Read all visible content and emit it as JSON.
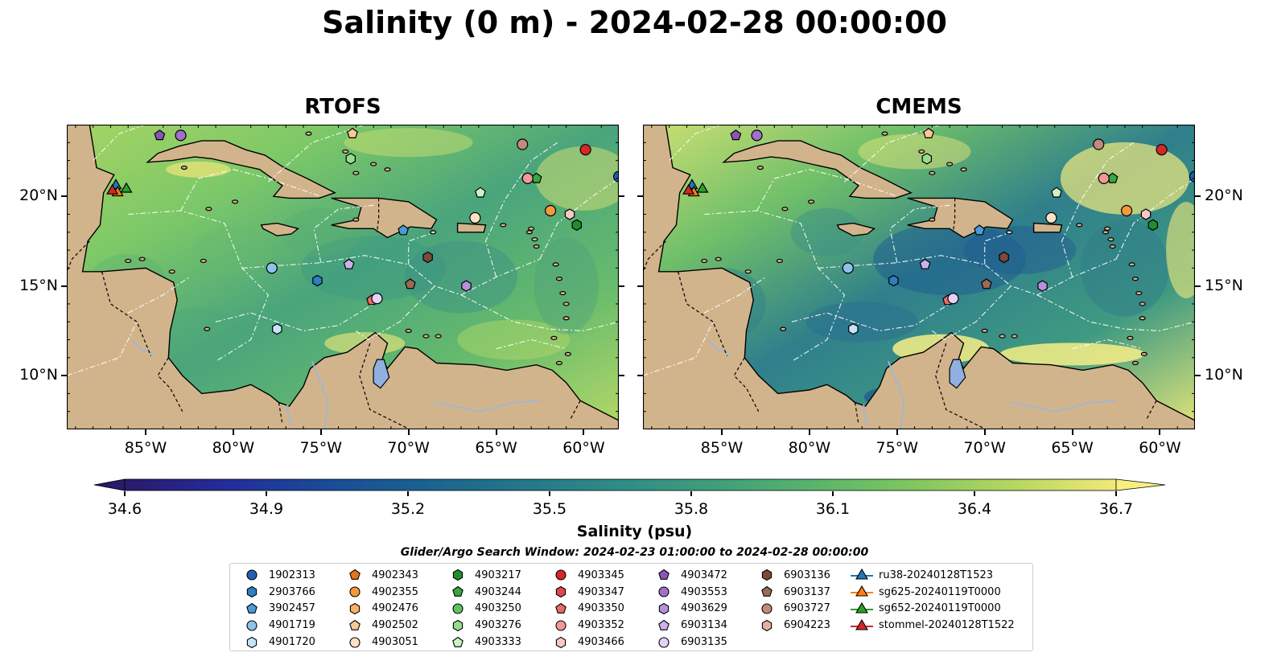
{
  "title": "Salinity (0 m) - 2024-02-28 00:00:00",
  "panels": [
    {
      "title": "RTOFS"
    },
    {
      "title": "CMEMS"
    }
  ],
  "map": {
    "lon_range": [
      -89.5,
      -58.0
    ],
    "lat_range": [
      7.0,
      24.0
    ],
    "lon_ticks": [
      "85°W",
      "80°W",
      "75°W",
      "70°W",
      "65°W",
      "60°W"
    ],
    "lat_ticks": [
      "20°N",
      "15°N",
      "10°N"
    ],
    "colors": {
      "land": "#d2b48c",
      "lake": "#8fb0e0",
      "river": "#9fb6d6",
      "deep": "#2c1a6e"
    }
  },
  "colorbar": {
    "label": "Salinity (psu)",
    "ticks": [
      "34.6",
      "34.9",
      "35.2",
      "35.5",
      "35.8",
      "36.1",
      "36.4",
      "36.7"
    ],
    "range": [
      34.6,
      36.7
    ],
    "colormap": "haline"
  },
  "search_window": "Glider/Argo Search Window: 2024-02-23 01:00:00 to 2024-02-28 00:00:00",
  "legend": [
    [
      {
        "label": "1902313",
        "marker": "circle",
        "color": "#1f5fb4"
      },
      {
        "label": "2903766",
        "marker": "hexagon",
        "color": "#2f7fc1"
      },
      {
        "label": "3902457",
        "marker": "pentagon",
        "color": "#4a9cd8"
      },
      {
        "label": "4901719",
        "marker": "circle",
        "color": "#8dc3ea"
      },
      {
        "label": "4901720",
        "marker": "hexagon",
        "color": "#c6e3f7"
      }
    ],
    [
      {
        "label": "4902343",
        "marker": "pentagon",
        "color": "#e8741a"
      },
      {
        "label": "4902355",
        "marker": "circle",
        "color": "#f39a3c"
      },
      {
        "label": "4902476",
        "marker": "hexagon",
        "color": "#f7b167"
      },
      {
        "label": "4902502",
        "marker": "pentagon",
        "color": "#f9c896"
      },
      {
        "label": "4903051",
        "marker": "circle",
        "color": "#fde1c4"
      }
    ],
    [
      {
        "label": "4903217",
        "marker": "hexagon",
        "color": "#1f8f2c"
      },
      {
        "label": "4903244",
        "marker": "pentagon",
        "color": "#34a844"
      },
      {
        "label": "4903250",
        "marker": "circle",
        "color": "#5cc45f"
      },
      {
        "label": "4903276",
        "marker": "hexagon",
        "color": "#95dd8e"
      },
      {
        "label": "4903333",
        "marker": "pentagon",
        "color": "#cff0c4"
      }
    ],
    [
      {
        "label": "4903345",
        "marker": "circle",
        "color": "#d62728"
      },
      {
        "label": "4903347",
        "marker": "hexagon",
        "color": "#e04848"
      },
      {
        "label": "4903350",
        "marker": "pentagon",
        "color": "#e96a6a"
      },
      {
        "label": "4903352",
        "marker": "circle",
        "color": "#f29898"
      },
      {
        "label": "4903466",
        "marker": "hexagon",
        "color": "#f9c7c4"
      }
    ],
    [
      {
        "label": "4903472",
        "marker": "pentagon",
        "color": "#8a55b8"
      },
      {
        "label": "4903553",
        "marker": "circle",
        "color": "#a070cc"
      },
      {
        "label": "4903629",
        "marker": "hexagon",
        "color": "#b690dc"
      },
      {
        "label": "6903134",
        "marker": "pentagon",
        "color": "#ccb1ea"
      },
      {
        "label": "6903135",
        "marker": "circle",
        "color": "#e3d2f5"
      }
    ],
    [
      {
        "label": "6903136",
        "marker": "hexagon",
        "color": "#7a4a3a"
      },
      {
        "label": "6903137",
        "marker": "pentagon",
        "color": "#9c6a56"
      },
      {
        "label": "6903727",
        "marker": "circle",
        "color": "#c08a7c"
      },
      {
        "label": "6904223",
        "marker": "hexagon",
        "color": "#e6aea3"
      }
    ],
    [
      {
        "label": "ru38-20240128T1523",
        "marker": "triangle-line",
        "color": "#1f77b4"
      },
      {
        "label": "sg625-20240119T0000",
        "marker": "triangle-line",
        "color": "#ff7f0e"
      },
      {
        "label": "sg652-20240119T0000",
        "marker": "triangle-line",
        "color": "#2ca02c"
      },
      {
        "label": "stommel-20240128T1522",
        "marker": "triangle-line",
        "color": "#d62728"
      }
    ]
  ],
  "points": [
    {
      "id": "1902313",
      "lon": -58.0,
      "lat": 21.1
    },
    {
      "id": "2903766",
      "lon": -75.2,
      "lat": 15.3
    },
    {
      "id": "3902457",
      "lon": -70.3,
      "lat": 18.1
    },
    {
      "id": "4901719",
      "lon": -77.8,
      "lat": 16.0
    },
    {
      "id": "4901720",
      "lon": -77.5,
      "lat": 12.6
    },
    {
      "id": "4902355",
      "lon": -61.9,
      "lat": 19.2
    },
    {
      "id": "4902502",
      "lon": -73.2,
      "lat": 23.5
    },
    {
      "id": "4903051",
      "lon": -66.2,
      "lat": 18.8
    },
    {
      "id": "4903244",
      "lon": -62.7,
      "lat": 21.0
    },
    {
      "id": "4903276",
      "lon": -73.3,
      "lat": 22.1
    },
    {
      "id": "4903333",
      "lon": -65.9,
      "lat": 20.2
    },
    {
      "id": "4903345",
      "lon": -59.9,
      "lat": 22.6
    },
    {
      "id": "4903350",
      "lon": -72.1,
      "lat": 14.2
    },
    {
      "id": "4903352",
      "lon": -63.2,
      "lat": 21.0
    },
    {
      "id": "4903466",
      "lon": -60.8,
      "lat": 19.0
    },
    {
      "id": "4903217",
      "lon": -60.4,
      "lat": 18.4
    },
    {
      "id": "4903472",
      "lon": -84.2,
      "lat": 23.4
    },
    {
      "id": "4903553",
      "lon": -83.0,
      "lat": 23.4
    },
    {
      "id": "6903134",
      "lon": -73.4,
      "lat": 16.2
    },
    {
      "id": "6903135",
      "lon": -71.8,
      "lat": 14.3
    },
    {
      "id": "6903136",
      "lon": -68.9,
      "lat": 16.6
    },
    {
      "id": "6903137",
      "lon": -69.9,
      "lat": 15.1
    },
    {
      "id": "6903727",
      "lon": -63.5,
      "lat": 22.9
    },
    {
      "id": "4903629",
      "lon": -66.7,
      "lat": 15.0
    }
  ],
  "gliders": [
    {
      "id": "ru38-20240128T1523",
      "lon": -86.7,
      "lat": 20.6
    },
    {
      "id": "sg625-20240119T0000",
      "lon": -86.6,
      "lat": 20.2
    },
    {
      "id": "sg652-20240119T0000",
      "lon": -86.1,
      "lat": 20.4
    },
    {
      "id": "stommel-20240128T1522",
      "lon": -86.9,
      "lat": 20.3
    }
  ]
}
